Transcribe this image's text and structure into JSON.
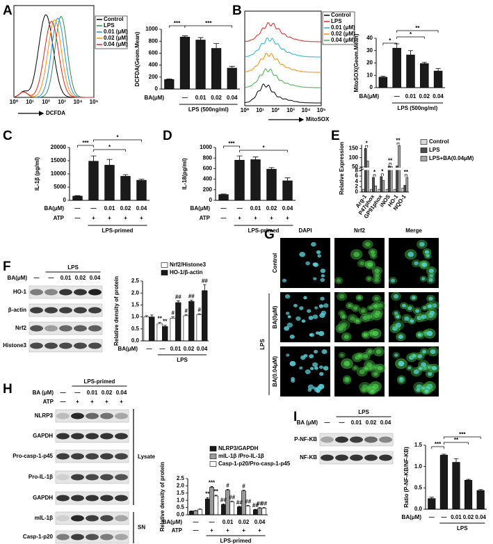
{
  "panel_labels": [
    "A",
    "B",
    "C",
    "D",
    "E",
    "F",
    "G",
    "H",
    "I"
  ],
  "flow": [
    {
      "x_label": "DCFDA",
      "x_ticks": [
        "10⁰",
        "10¹",
        "10²",
        "10³",
        "10⁴",
        "10⁵"
      ],
      "legend": [
        "Control",
        "LPS",
        "0.01 (μM)",
        "0.02 (μM)",
        "0.04 (μM)"
      ],
      "colors": [
        "#000000",
        "#2e8b57",
        "#1e90ff",
        "#ff8c00",
        "#e0201b"
      ]
    },
    {
      "x_label": "MitoSOX",
      "x_ticks": [
        "10⁰",
        "10¹",
        "10²",
        "10³",
        "10⁴",
        "10⁵"
      ],
      "legend": [
        "Control",
        "LPS",
        "0.01 (μM)",
        "0.02 (μM)",
        "0.04 (μM)"
      ],
      "colors": [
        "#000000",
        "#e0201b",
        "#19b5d6",
        "#ff8c00",
        "#3cb043"
      ]
    }
  ],
  "chart_data": [
    {
      "type": "bar",
      "ylabel": "DCFDA(Geom.Mean)",
      "ylim": [
        0,
        1000
      ],
      "yticks": [
        0,
        200,
        400,
        600,
        800,
        1000
      ],
      "categories_label": "BA(μM)",
      "categories": [
        null,
        "—",
        "0.01",
        "0.02",
        "0.04"
      ],
      "values": [
        160,
        870,
        820,
        680,
        350
      ],
      "errors": [
        10,
        20,
        40,
        80,
        30
      ],
      "color": "#1a1a1a",
      "group_label": "LPS (500ng/ml)",
      "annotations": [
        "***",
        "***"
      ]
    },
    {
      "type": "bar",
      "ylabel": "MitoSOX(Geom.Mean)",
      "ylim": [
        0,
        40
      ],
      "yticks": [
        0,
        10,
        20,
        30,
        40
      ],
      "categories_label": "BA(μM)",
      "categories": [
        null,
        "—",
        "0.01",
        "0.02",
        "0.04"
      ],
      "values": [
        8.5,
        32,
        26.5,
        19.5,
        13.5
      ],
      "errors": [
        0.8,
        3.5,
        3.5,
        1,
        2
      ],
      "color": "#1a1a1a",
      "group_label": "LPS (500ng/ml)",
      "annotations": [
        "*",
        "**",
        "*"
      ]
    },
    {
      "type": "bar",
      "ylabel": "IL-1β (pg/ml)",
      "ylim": [
        0,
        20000
      ],
      "yticks": [
        0,
        5000,
        10000,
        15000,
        20000
      ],
      "categories_label": "BA(μM)",
      "categories": [
        "—",
        "—",
        "0.01",
        "0.02",
        "0.04"
      ],
      "x_rows": [
        {
          "label": "ATP",
          "values": [
            "—",
            "+",
            "+",
            "+",
            "+"
          ]
        }
      ],
      "values": [
        1600,
        14800,
        13300,
        9100,
        7600
      ],
      "errors": [
        200,
        2000,
        2200,
        600,
        400
      ],
      "color": "#1a1a1a",
      "group_label": "LPS-primed",
      "annotations": [
        "***",
        "*",
        "*"
      ]
    },
    {
      "type": "bar",
      "ylabel": "IL-18(pg/ml)",
      "ylim": [
        0,
        1000
      ],
      "yticks": [
        0,
        200,
        400,
        600,
        800,
        1000
      ],
      "categories_label": "BA(μM)",
      "categories": [
        "—",
        "—",
        "0.01",
        "0.02",
        "0.04"
      ],
      "x_rows": [
        {
          "label": "ATP",
          "values": [
            "—",
            "+",
            "+",
            "+",
            "+"
          ]
        }
      ],
      "values": [
        110,
        760,
        770,
        590,
        370
      ],
      "errors": [
        10,
        80,
        50,
        30,
        55
      ],
      "color": "#1a1a1a",
      "group_label": "LPS-primed",
      "annotations": [
        "***",
        "*"
      ]
    },
    {
      "type": "bar",
      "ylabel": "Relative Expression",
      "ylim": [
        0,
        170
      ],
      "yticks": [
        0,
        2,
        4,
        6,
        8,
        50,
        100,
        150
      ],
      "axis_break": [
        8,
        50
      ],
      "categories": [
        "Arg-1",
        "P47phox",
        "GP91phox",
        "iNOS",
        "HO-1",
        "NQO-1"
      ],
      "series": [
        {
          "name": "Control",
          "color": "#d9d9d9",
          "values": [
            1,
            1,
            1,
            1,
            1,
            1.5
          ]
        },
        {
          "name": "LPS",
          "color": "#4d4d4d",
          "values": [
            150,
            5.5,
            5.8,
            55,
            55,
            2.5
          ]
        },
        {
          "name": "LPS+BA(0.04μM)",
          "color": "#a6a6a6",
          "values": [
            82,
            2.3,
            4.3,
            52,
            165,
            5.5
          ]
        }
      ],
      "annotations": [
        "*",
        "*",
        "*",
        "**",
        "**",
        "**"
      ]
    },
    {
      "type": "bar",
      "ylabel": "Relative density of protein",
      "ylim": [
        0,
        2.5
      ],
      "yticks": [
        {
          "value": 0,
          "label": "0.0"
        },
        {
          "value": 0.5,
          "label": "0.5"
        },
        {
          "value": 1,
          "label": "1.0"
        },
        {
          "value": 1.5,
          "label": "1.5"
        },
        {
          "value": 2,
          "label": "2.0"
        },
        {
          "value": 2.5,
          "label": "2.5"
        }
      ],
      "categories_label": "BA(μM)",
      "categories": [
        "—",
        "—",
        "0.01",
        "0.02",
        "0.04"
      ],
      "series": [
        {
          "name": "Nrf2/Histone3",
          "color": "#ffffff",
          "values": [
            1.0,
            0.72,
            0.95,
            1.05,
            1.1
          ],
          "errors": [
            0.05,
            0.05,
            0.05,
            0.05,
            0.03
          ],
          "sig": [
            null,
            "**",
            "#",
            "#",
            "#"
          ]
        },
        {
          "name": "HO-1/β-actin",
          "color": "#1a1a1a",
          "values": [
            1.0,
            0.6,
            1.6,
            1.65,
            2.1
          ],
          "errors": [
            0.08,
            0.05,
            0.07,
            0.05,
            0.25
          ],
          "sig": [
            null,
            "**",
            "##",
            "##",
            "##"
          ]
        }
      ],
      "group_label": "LPS"
    },
    {
      "type": "bar",
      "ylabel": "Relative density of protein",
      "ylim": [
        0,
        2.5
      ],
      "yticks": [
        {
          "value": 0,
          "label": "0.0"
        },
        {
          "value": 0.5,
          "label": "0.5"
        },
        {
          "value": 1,
          "label": "1.0"
        },
        {
          "value": 1.5,
          "label": "1.5"
        },
        {
          "value": 2,
          "label": "2.0"
        },
        {
          "value": 2.5,
          "label": "2.5"
        }
      ],
      "categories_label": "BA(μM)",
      "categories": [
        "—",
        "—",
        "0.01",
        "0.02",
        "0.04"
      ],
      "x_rows": [
        {
          "label": "ATP",
          "values": [
            "—",
            "+",
            "+",
            "+",
            "+"
          ]
        }
      ],
      "series": [
        {
          "name": "NLRP3/GAPDH",
          "color": "#1a1a1a",
          "values": [
            0.25,
            1.1,
            0.7,
            0.55,
            0.35
          ],
          "errors": [
            0.02,
            0.08,
            0.05,
            0.04,
            0.03
          ],
          "sig": [
            null,
            "**",
            "##",
            "##",
            "##"
          ]
        },
        {
          "name": "mIL-1β /Pro-IL-1β",
          "color": "#9a9a9a",
          "values": [
            0.28,
            1.9,
            1.7,
            1.65,
            0.45
          ],
          "errors": [
            0.02,
            0.05,
            0.06,
            0.05,
            0.05
          ],
          "sig": [
            null,
            "***",
            "#",
            "#",
            "##"
          ]
        },
        {
          "name": "Casp-1-p20/Pro-casp-1-p45",
          "color": "#ffffff",
          "values": [
            0.38,
            1.3,
            0.9,
            0.6,
            0.45
          ],
          "errors": [
            0.02,
            0.05,
            0.05,
            0.05,
            0.05
          ],
          "sig": [
            null,
            "**",
            "##",
            "##",
            "##"
          ]
        }
      ],
      "group_label": "LPS-primed"
    },
    {
      "type": "bar",
      "ylabel": "Ratio (P-NF-KB/NF-KB)",
      "ylim": [
        0,
        1.5
      ],
      "yticks": [
        {
          "value": 0,
          "label": "0.0"
        },
        {
          "value": 0.5,
          "label": "0.5"
        },
        {
          "value": 1,
          "label": "1.0"
        },
        {
          "value": 1.5,
          "label": "1.5"
        }
      ],
      "categories_label": "BA(μM)",
      "categories": [
        "—",
        "—",
        "0.01",
        "0.02",
        "0.04"
      ],
      "values": [
        0.25,
        1.27,
        1.1,
        0.68,
        0.44
      ],
      "errors": [
        0.03,
        0.02,
        0.08,
        0.02,
        0.02
      ],
      "color": "#1a1a1a",
      "group_label": "LPS",
      "annotations": [
        "***",
        "**",
        "***"
      ]
    }
  ],
  "blots": [
    {
      "group": "LPS",
      "header_rows": [
        {
          "label": "BA(μM)",
          "lanes": [
            "—",
            "—",
            "0.01",
            "0.02",
            "0.04"
          ]
        }
      ],
      "bands": [
        "HO-1",
        "β-actin",
        "Nrf2",
        "Histone3"
      ]
    },
    {
      "group": "LPS-primed",
      "header_rows": [
        {
          "label": "BA (μM)",
          "lanes": [
            "—",
            "—",
            "0.01",
            "0.02",
            "0.04"
          ]
        },
        {
          "label": "ATP",
          "lanes": [
            "—",
            "+",
            "+",
            "+",
            "+"
          ]
        }
      ],
      "bands": [
        "NLRP3",
        "GAPDH",
        "Pro-casp-1-p45",
        "Pro-IL-1β",
        "GAPDH",
        "mIL-1β",
        "Casp-1-p20"
      ],
      "brackets": [
        "Lysate",
        "SN"
      ]
    },
    {
      "group": "LPS",
      "header_rows": [
        {
          "label": "BA (μM)",
          "lanes": [
            "—",
            "—",
            "0.01",
            "0.02",
            "0.04"
          ]
        }
      ],
      "bands": [
        "P-NF-KB",
        "NF-KB"
      ]
    }
  ],
  "microscopy": {
    "columns": [
      "DAPI",
      "Nrf2",
      "Merge"
    ],
    "rows": [
      "Control",
      "BA(0μM)",
      "BA(0.04μM)"
    ],
    "group": "LPS"
  }
}
